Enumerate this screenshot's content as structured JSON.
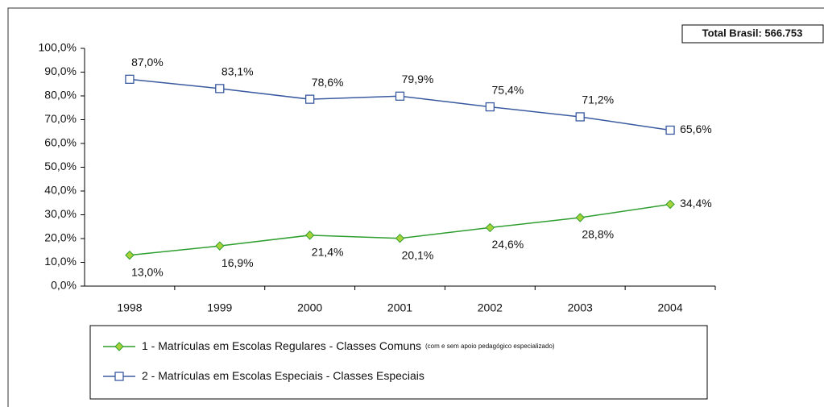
{
  "chart_data": {
    "type": "line",
    "annotation": "Total Brasil: 566.753",
    "categories": [
      "1998",
      "1999",
      "2000",
      "2001",
      "2002",
      "2003",
      "2004"
    ],
    "series": [
      {
        "name": "1 - Matrículas em Escolas Regulares - Classes Comuns",
        "note": "(com e sem apoio pedagógico especializado)",
        "color": "#2e9e2e",
        "marker_fill": "#a8d23a",
        "marker": "diamond",
        "values": [
          13.0,
          16.9,
          21.4,
          20.1,
          24.6,
          28.8,
          34.4
        ],
        "value_labels": [
          "13,0%",
          "16,9%",
          "21,4%",
          "20,1%",
          "24,6%",
          "28,8%",
          "34,4%"
        ]
      },
      {
        "name": "2 - Matrículas em Escolas Especiais - Classes Especiais",
        "color": "#3a5aa0",
        "marker_fill": "#ffffff",
        "marker": "square",
        "values": [
          87.0,
          83.1,
          78.6,
          79.9,
          75.4,
          71.2,
          65.6
        ],
        "value_labels": [
          "87,0%",
          "83,1%",
          "78,6%",
          "79,9%",
          "75,4%",
          "71,2%",
          "65,6%"
        ]
      }
    ],
    "ylim": [
      0,
      100
    ],
    "yticks": [
      {
        "value": 0,
        "label": "0,0%"
      },
      {
        "value": 10,
        "label": "10,0%"
      },
      {
        "value": 20,
        "label": "20,0%"
      },
      {
        "value": 30,
        "label": "30,0%"
      },
      {
        "value": 40,
        "label": "40,0%"
      },
      {
        "value": 50,
        "label": "50,0%"
      },
      {
        "value": 60,
        "label": "60,0%"
      },
      {
        "value": 70,
        "label": "70,0%"
      },
      {
        "value": 80,
        "label": "80,0%"
      },
      {
        "value": 90,
        "label": "90,0%"
      },
      {
        "value": 100,
        "label": "100,0%"
      }
    ],
    "grid": false
  }
}
